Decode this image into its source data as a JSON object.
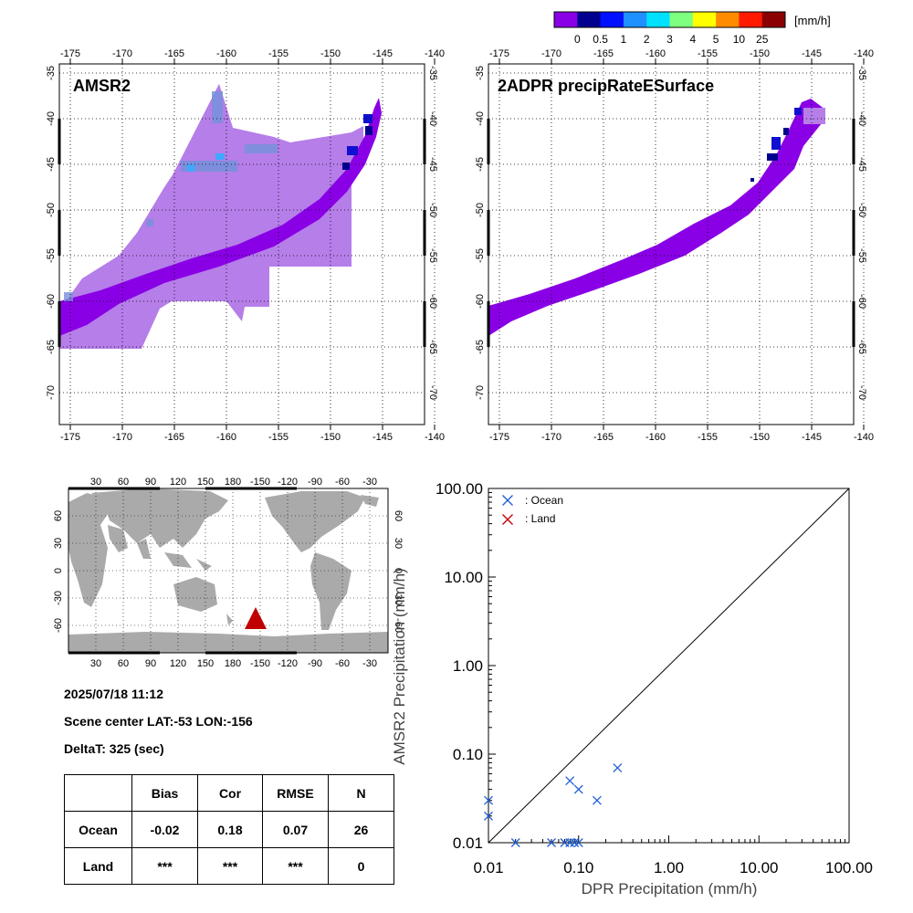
{
  "colorbar": {
    "unit": "[mm/h]",
    "ticks": [
      "0",
      "0.5",
      "1",
      "2",
      "3",
      "4",
      "5",
      "10",
      "25"
    ],
    "colors": [
      "#8a00e6",
      "#000090",
      "#0010ff",
      "#1e90ff",
      "#00e0ff",
      "#7fff7f",
      "#ffff00",
      "#ff8c00",
      "#ff1a00",
      "#8b0000"
    ]
  },
  "panels": {
    "amsr2": {
      "title": "AMSR2",
      "lon_ticks": [
        "-175",
        "-170",
        "-165",
        "-160",
        "-155",
        "-150",
        "-145",
        "-140"
      ],
      "lat_ticks": [
        "-35",
        "-40",
        "-45",
        "-50",
        "-55",
        "-60",
        "-65",
        "-70"
      ]
    },
    "dpr": {
      "title": "2ADPR precipRateESurface",
      "lon_ticks": [
        "-175",
        "-170",
        "-165",
        "-160",
        "-155",
        "-150",
        "-145",
        "-140"
      ],
      "lat_ticks": [
        "-35",
        "-40",
        "-45",
        "-50",
        "-55",
        "-60",
        "-65",
        "-70"
      ]
    }
  },
  "world_map": {
    "lon_ticks": [
      "30",
      "60",
      "90",
      "120",
      "150",
      "180",
      "-150",
      "-120",
      "-90",
      "-60",
      "-30"
    ],
    "lat_ticks": [
      "60",
      "30",
      "0",
      "-30",
      "-60"
    ],
    "land_color": "#aaaaaa",
    "marker_color": "#c00000"
  },
  "info": {
    "datetime": "2025/07/18 11:12",
    "scene_center": "Scene center LAT:-53   LON:-156",
    "deltat": "DeltaT:  325 (sec)"
  },
  "stats_table": {
    "headers": [
      "",
      "Bias",
      "Cor",
      "RMSE",
      "N"
    ],
    "rows": [
      [
        "Ocean",
        "-0.02",
        "0.18",
        "0.07",
        "26"
      ],
      [
        "Land",
        "***",
        "***",
        "***",
        "0"
      ]
    ]
  },
  "chart_data": {
    "type": "scatter",
    "xlabel": "DPR Precipitation (mm/h)",
    "ylabel": "AMSR2 Precipitation (mm/h)",
    "xscale": "log",
    "yscale": "log",
    "xlim": [
      0.01,
      100
    ],
    "ylim": [
      0.01,
      100
    ],
    "tick_labels": [
      "0.01",
      "0.10",
      "1.00",
      "10.00",
      "100.00"
    ],
    "legend_placement": "top-left",
    "series": [
      {
        "name": ": Ocean",
        "color": "#1f5fd6",
        "points": [
          [
            0.01,
            0.03
          ],
          [
            0.01,
            0.02
          ],
          [
            0.02,
            0.01
          ],
          [
            0.05,
            0.01
          ],
          [
            0.07,
            0.01
          ],
          [
            0.08,
            0.01
          ],
          [
            0.09,
            0.01
          ],
          [
            0.1,
            0.01
          ],
          [
            0.08,
            0.05
          ],
          [
            0.1,
            0.04
          ],
          [
            0.16,
            0.03
          ],
          [
            0.27,
            0.07
          ]
        ]
      },
      {
        "name": ": Land",
        "color": "#c00000",
        "points": []
      }
    ],
    "diagonal": true
  }
}
